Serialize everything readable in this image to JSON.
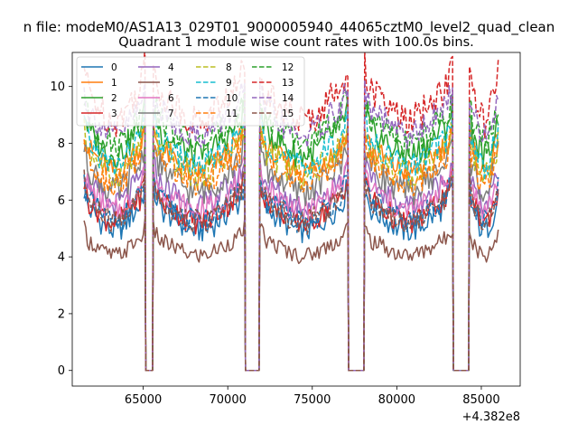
{
  "figure": {
    "suptitle": "n file: modeM0/AS1A13_029T01_9000005940_44065cztM0_level2_quad_clean",
    "title": "Quadrant 1 module wise count rates with 100.0s bins.",
    "offset_label": "+4.382e8"
  },
  "chart_data": {
    "type": "line",
    "title": "Quadrant 1 module wise count rates with 100.0s bins.",
    "xlabel": "",
    "ylabel": "",
    "x_offset": 438200000,
    "xlim": [
      60800,
      87300
    ],
    "ylim": [
      -0.55,
      11.2
    ],
    "xticks": [
      65000,
      70000,
      75000,
      80000,
      85000
    ],
    "xtick_labels": [
      "65000",
      "70000",
      "75000",
      "80000",
      "85000"
    ],
    "yticks": [
      0,
      2,
      4,
      6,
      8,
      10
    ],
    "ytick_labels": [
      "0",
      "2",
      "4",
      "6",
      "8",
      "10"
    ],
    "grid": false,
    "legend_placement": "upper-left",
    "legend_ncol": 4,
    "segments": [
      {
        "start": 61500,
        "end": 65100
      },
      {
        "start": 65600,
        "end": 71000
      },
      {
        "start": 71900,
        "end": 77100
      },
      {
        "start": 78100,
        "end": 83300
      },
      {
        "start": 84300,
        "end": 86050
      }
    ],
    "gaps": [
      {
        "start": 65150,
        "end": 65550
      },
      {
        "start": 71050,
        "end": 71850
      },
      {
        "start": 77150,
        "end": 78050
      },
      {
        "start": 83350,
        "end": 84250
      }
    ],
    "series": [
      {
        "name": "0",
        "style": "solid",
        "color": "#1f77b4",
        "level": 5.3,
        "amp": 0.45
      },
      {
        "name": "1",
        "style": "solid",
        "color": "#ff7f0e",
        "level": 7.4,
        "amp": 0.45
      },
      {
        "name": "2",
        "style": "solid",
        "color": "#2ca02c",
        "level": 8.0,
        "amp": 0.5
      },
      {
        "name": "3",
        "style": "solid",
        "color": "#d62728",
        "level": 5.6,
        "amp": 0.45
      },
      {
        "name": "4",
        "style": "solid",
        "color": "#9467bd",
        "level": 6.2,
        "amp": 0.45
      },
      {
        "name": "5",
        "style": "solid",
        "color": "#8c564b",
        "level": 4.3,
        "amp": 0.3
      },
      {
        "name": "6",
        "style": "solid",
        "color": "#e377c2",
        "level": 6.0,
        "amp": 0.45
      },
      {
        "name": "7",
        "style": "solid",
        "color": "#7f7f7f",
        "level": 6.7,
        "amp": 0.5
      },
      {
        "name": "8",
        "style": "dashed",
        "color": "#bcbd22",
        "level": 7.3,
        "amp": 0.5
      },
      {
        "name": "9",
        "style": "dashed",
        "color": "#17becf",
        "level": 7.6,
        "amp": 0.5
      },
      {
        "name": "10",
        "style": "dashed",
        "color": "#1f77b4",
        "level": 5.6,
        "amp": 0.45
      },
      {
        "name": "11",
        "style": "dashed",
        "color": "#ff7f0e",
        "level": 7.0,
        "amp": 0.5
      },
      {
        "name": "12",
        "style": "dashed",
        "color": "#2ca02c",
        "level": 8.4,
        "amp": 0.5
      },
      {
        "name": "13",
        "style": "dashed",
        "color": "#d62728",
        "level": 9.3,
        "amp": 0.6
      },
      {
        "name": "14",
        "style": "dashed",
        "color": "#9467bd",
        "level": 8.7,
        "amp": 0.5
      },
      {
        "name": "15",
        "style": "dashed",
        "color": "#8c564b",
        "level": 5.6,
        "amp": 0.45
      }
    ]
  }
}
